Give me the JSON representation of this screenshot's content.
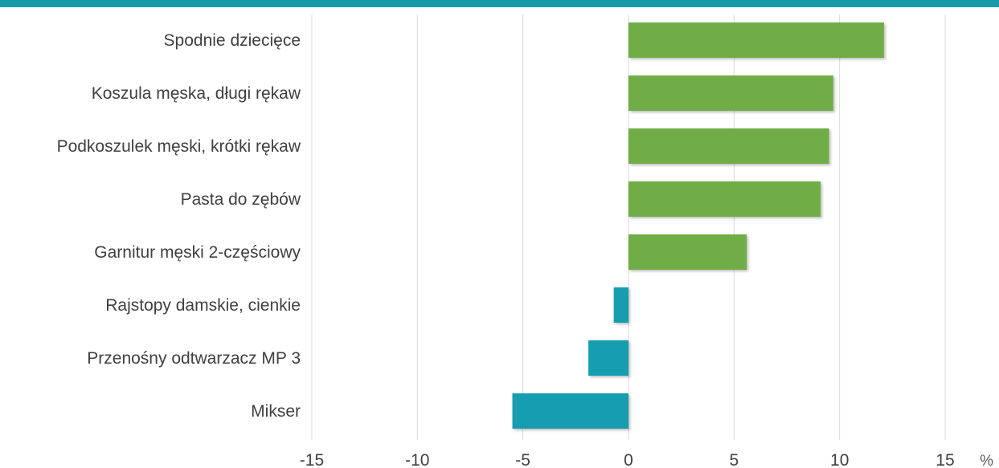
{
  "colors": {
    "top_border": "#159aa8",
    "positive_bar": "#70ad47",
    "negative_bar": "#149eb0",
    "gridline": "#d9d9d9"
  },
  "chart_data": {
    "type": "bar",
    "orientation": "horizontal",
    "categories": [
      "Spodnie dziecięce",
      "Koszula męska, długi rękaw",
      "Podkoszulek męski, krótki rękaw",
      "Pasta do zębów",
      "Garnitur męski 2-częściowy",
      "Rajstopy damskie, cienkie",
      "Przenośny odtwarzacz MP 3",
      "Mikser"
    ],
    "values": [
      12.1,
      9.7,
      9.5,
      9.1,
      5.6,
      -0.7,
      -1.9,
      -5.5
    ],
    "xlim": [
      -15,
      15
    ],
    "xticks": [
      -15,
      -10,
      -5,
      0,
      5,
      10,
      15
    ],
    "xtick_labels": [
      "-15",
      "-10",
      "-5",
      "0",
      "5",
      "10",
      "15"
    ],
    "unit_label": "%",
    "grid": "vertical"
  }
}
